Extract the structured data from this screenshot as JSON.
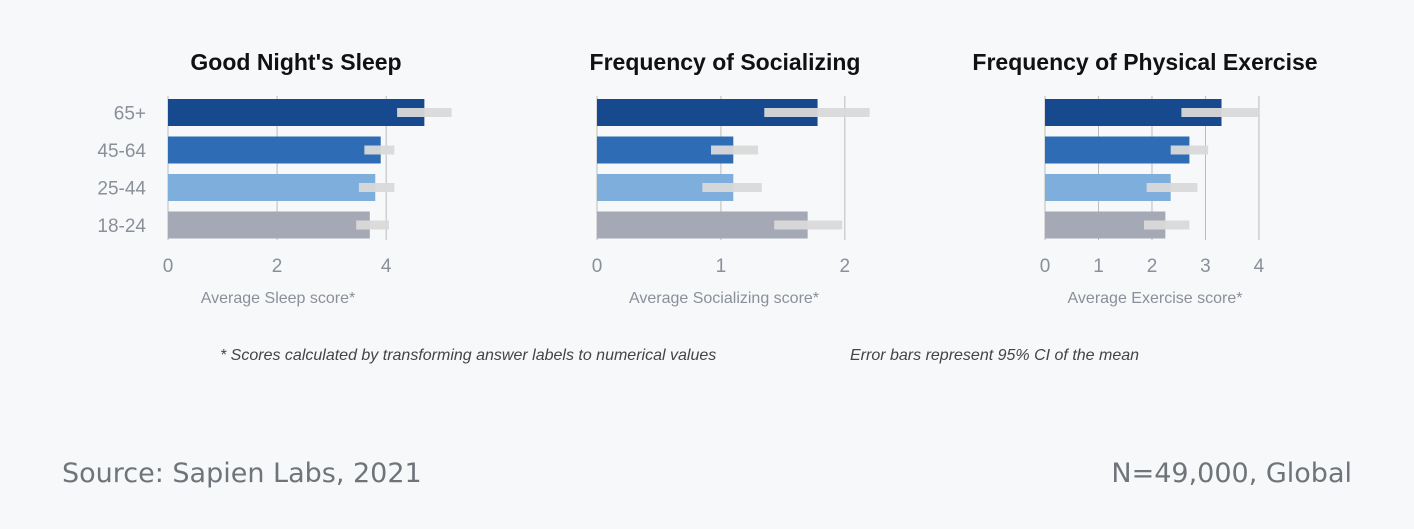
{
  "chart_data": [
    {
      "type": "bar",
      "orientation": "horizontal",
      "title": "Good Night's Sleep",
      "categories": [
        "65+",
        "45-64",
        "25-44",
        "18-24"
      ],
      "values": [
        4.7,
        3.9,
        3.8,
        3.7
      ],
      "ci_low": [
        4.2,
        3.6,
        3.5,
        3.45
      ],
      "ci_high": [
        5.2,
        4.15,
        4.15,
        4.05
      ],
      "xticks": [
        0,
        2,
        4
      ],
      "xlim": [
        0,
        5.5
      ],
      "xlabel": "Average Sleep score*",
      "show_category_labels": true
    },
    {
      "type": "bar",
      "orientation": "horizontal",
      "title": "Frequency of Socializing",
      "categories": [
        "65+",
        "45-64",
        "25-44",
        "18-24"
      ],
      "values": [
        1.78,
        1.1,
        1.1,
        1.7
      ],
      "ci_low": [
        1.35,
        0.92,
        0.85,
        1.43
      ],
      "ci_high": [
        2.2,
        1.3,
        1.33,
        1.98
      ],
      "xticks": [
        0,
        1,
        2
      ],
      "xlim": [
        0,
        2.3
      ],
      "xlabel": "Average Socializing score*",
      "show_category_labels": false
    },
    {
      "type": "bar",
      "orientation": "horizontal",
      "title": "Frequency of Physical Exercise",
      "categories": [
        "65+",
        "45-64",
        "25-44",
        "18-24"
      ],
      "values": [
        3.3,
        2.7,
        2.35,
        2.25
      ],
      "ci_low": [
        2.55,
        2.35,
        1.9,
        1.85
      ],
      "ci_high": [
        4.0,
        3.05,
        2.85,
        2.7
      ],
      "xticks": [
        0,
        1,
        2,
        3,
        4
      ],
      "xlim": [
        0,
        4.3
      ],
      "xlabel": "Average Exercise score*",
      "show_category_labels": false
    }
  ],
  "colors": {
    "bars": [
      "#17498e",
      "#2e6db5",
      "#7eaedc",
      "#a5a8b5"
    ],
    "error_bar": "#d9d9d9",
    "gridline": "#bbbbbb",
    "tick_label": "#8a8f99",
    "title": "#111111"
  },
  "footnotes": {
    "left": "* Scores calculated by transforming answer labels to numerical values",
    "right": "Error bars represent 95% CI of the mean"
  },
  "source": "Source: Sapien Labs, 2021",
  "sample": "N=49,000, Global"
}
